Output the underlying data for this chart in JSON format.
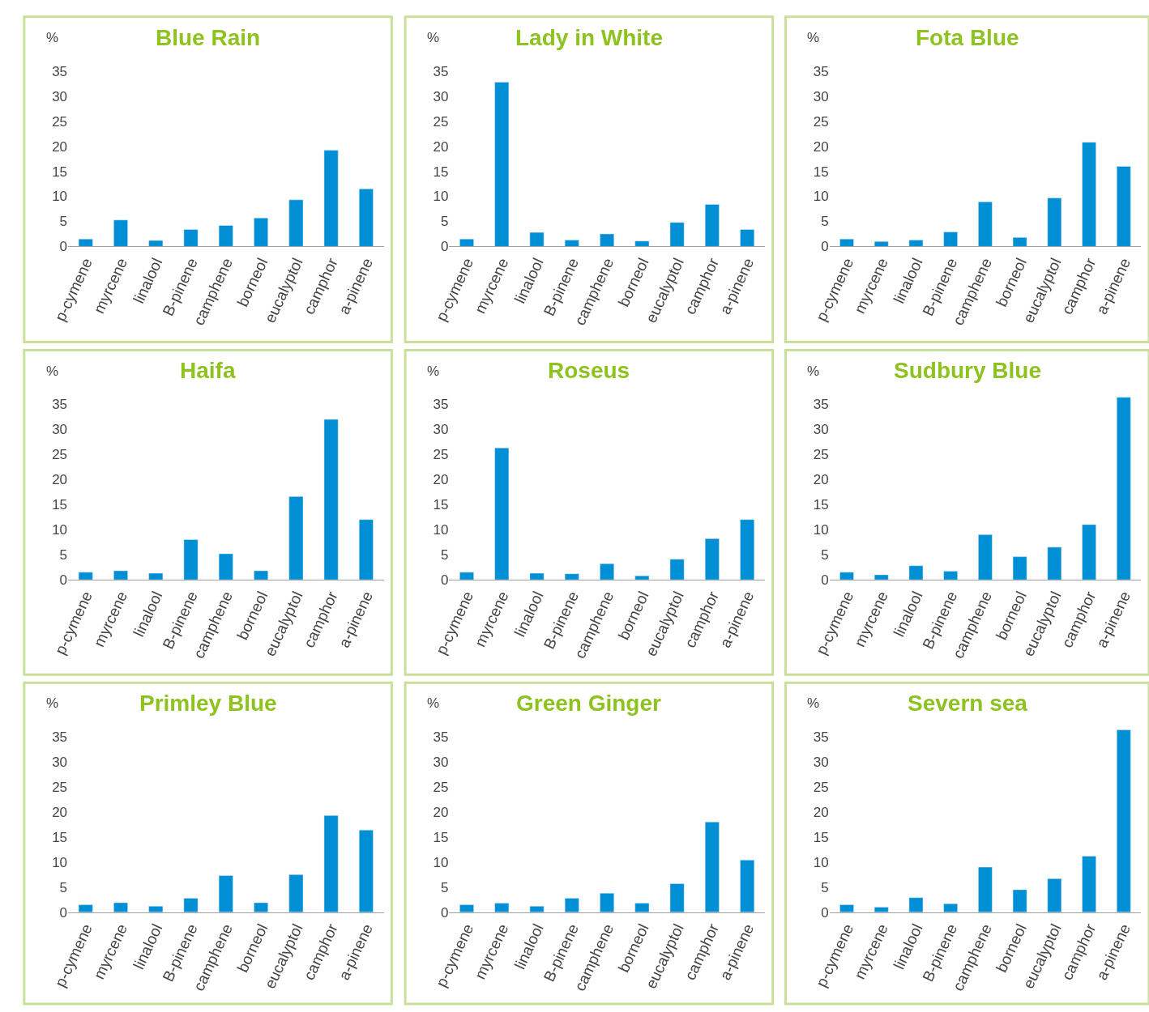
{
  "chart_data": [
    {
      "type": "bar",
      "title": "Blue Rain",
      "ylabel": "%",
      "categories": [
        "p-cymene",
        "myrcene",
        "linalool",
        "B-pinene",
        "camphene",
        "borneol",
        "eucalyptol",
        "camphor",
        "a-pinene"
      ],
      "values": [
        1.5,
        5.3,
        1.2,
        3.4,
        4.2,
        5.7,
        9.3,
        19.2,
        11.5
      ],
      "color": "#008fd5",
      "ylim": [
        0,
        35
      ],
      "yticks": [
        0,
        5,
        10,
        15,
        20,
        25,
        30,
        35
      ]
    },
    {
      "type": "bar",
      "title": "Lady in White",
      "ylabel": "%",
      "categories": [
        "p-cymene",
        "myrcene",
        "linalool",
        "B-pinene",
        "camphene",
        "borneol",
        "eucalyptol",
        "camphor",
        "a-pinene"
      ],
      "values": [
        1.5,
        32.8,
        2.8,
        1.3,
        2.5,
        1.1,
        4.8,
        8.4,
        3.4
      ],
      "color": "#008fd5",
      "ylim": [
        0,
        35
      ],
      "yticks": [
        0,
        5,
        10,
        15,
        20,
        25,
        30,
        35
      ]
    },
    {
      "type": "bar",
      "title": "Fota Blue",
      "ylabel": "%",
      "categories": [
        "p-cymene",
        "myrcene",
        "linalool",
        "B-pinene",
        "camphene",
        "borneol",
        "eucalyptol",
        "camphor",
        "a-pinene"
      ],
      "values": [
        1.5,
        1.0,
        1.3,
        2.9,
        8.9,
        1.8,
        9.7,
        20.8,
        16.0
      ],
      "color": "#008fd5",
      "ylim": [
        0,
        35
      ],
      "yticks": [
        0,
        5,
        10,
        15,
        20,
        25,
        30,
        35
      ]
    },
    {
      "type": "bar",
      "title": "Haifa",
      "ylabel": "%",
      "categories": [
        "p-cymene",
        "myrcene",
        "linalool",
        "B-pinene",
        "camphene",
        "borneol",
        "eucalyptol",
        "camphor",
        "a-pinene"
      ],
      "values": [
        1.5,
        1.8,
        1.3,
        8.0,
        5.2,
        1.8,
        16.6,
        32.0,
        12.0
      ],
      "color": "#008fd5",
      "ylim": [
        0,
        35
      ],
      "yticks": [
        0,
        5,
        10,
        15,
        20,
        25,
        30,
        35
      ]
    },
    {
      "type": "bar",
      "title": "Roseus",
      "ylabel": "%",
      "categories": [
        "p-cymene",
        "myrcene",
        "linalool",
        "B-pinene",
        "camphene",
        "borneol",
        "eucalyptol",
        "camphor",
        "a-pinene"
      ],
      "values": [
        1.5,
        26.3,
        1.3,
        1.2,
        3.2,
        0.8,
        4.1,
        8.2,
        12.0
      ],
      "color": "#008fd5",
      "ylim": [
        0,
        35
      ],
      "yticks": [
        0,
        5,
        10,
        15,
        20,
        25,
        30,
        35
      ]
    },
    {
      "type": "bar",
      "title": "Sudbury Blue",
      "ylabel": "%",
      "categories": [
        "p-cymene",
        "myrcene",
        "linalool",
        "B-pinene",
        "camphene",
        "borneol",
        "eucalyptol",
        "camphor",
        "a-pinene"
      ],
      "values": [
        1.5,
        1.0,
        2.8,
        1.7,
        9.0,
        4.6,
        6.5,
        11.0,
        36.4
      ],
      "color": "#008fd5",
      "ylim": [
        0,
        37
      ],
      "yticks": [
        0,
        5,
        10,
        15,
        20,
        25,
        30,
        35
      ]
    },
    {
      "type": "bar",
      "title": "Primley Blue",
      "ylabel": "%",
      "categories": [
        "p-cymene",
        "myrcene",
        "linalool",
        "B-pinene",
        "camphene",
        "borneol",
        "eucalyptol",
        "camphor",
        "a-pinene"
      ],
      "values": [
        1.5,
        1.9,
        1.2,
        2.8,
        7.3,
        1.9,
        7.5,
        19.3,
        16.4
      ],
      "color": "#008fd5",
      "ylim": [
        0,
        35
      ],
      "yticks": [
        0,
        5,
        10,
        15,
        20,
        25,
        30,
        35
      ]
    },
    {
      "type": "bar",
      "title": "Green Ginger",
      "ylabel": "%",
      "categories": [
        "p-cymene",
        "myrcene",
        "linalool",
        "B-pinene",
        "camphene",
        "borneol",
        "eucalyptol",
        "camphor",
        "a-pinene"
      ],
      "values": [
        1.5,
        1.8,
        1.2,
        2.8,
        3.8,
        1.8,
        5.7,
        18.0,
        10.4
      ],
      "color": "#008fd5",
      "ylim": [
        0,
        35
      ],
      "yticks": [
        0,
        5,
        10,
        15,
        20,
        25,
        30,
        35
      ]
    },
    {
      "type": "bar",
      "title": "Severn sea",
      "ylabel": "%",
      "categories": [
        "p-cymene",
        "myrcene",
        "linalool",
        "B-pinene",
        "camphene",
        "borneol",
        "eucalyptol",
        "camphor",
        "a-pinene"
      ],
      "values": [
        1.5,
        1.0,
        2.9,
        1.7,
        9.0,
        4.5,
        6.7,
        11.2,
        36.4
      ],
      "color": "#008fd5",
      "ylim": [
        0,
        37
      ],
      "yticks": [
        0,
        5,
        10,
        15,
        20,
        25,
        30,
        35
      ]
    }
  ]
}
